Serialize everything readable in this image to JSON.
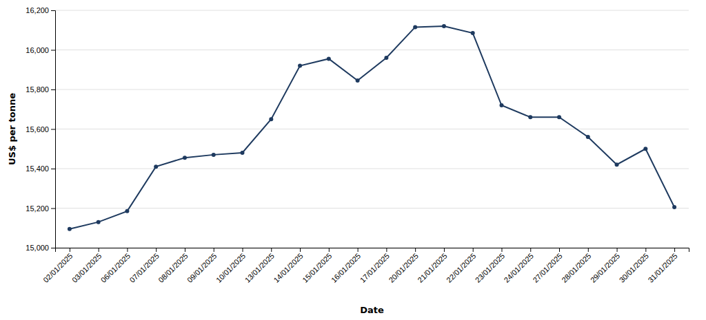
{
  "chart_data": {
    "type": "line",
    "categories": [
      "02/01/2025",
      "03/01/2025",
      "06/01/2025",
      "07/01/2025",
      "08/01/2025",
      "09/01/2025",
      "10/01/2025",
      "13/01/2025",
      "14/01/2025",
      "15/01/2025",
      "16/01/2025",
      "17/01/2025",
      "20/01/2025",
      "21/01/2025",
      "22/01/2025",
      "23/01/2025",
      "24/01/2025",
      "27/01/2025",
      "28/01/2025",
      "29/01/2025",
      "30/01/2025",
      "31/01/2025"
    ],
    "values": [
      15095,
      15130,
      15185,
      15410,
      15455,
      15470,
      15480,
      15650,
      15920,
      15955,
      15845,
      15960,
      16115,
      16120,
      16085,
      15720,
      15660,
      15660,
      15560,
      15420,
      15500,
      15205
    ],
    "color": "#1e3a5f",
    "marker": "circle",
    "xlabel": "Date",
    "ylabel": "US$ per tonne",
    "ylim": [
      15000,
      16200
    ],
    "yticks": [
      {
        "value": 15000,
        "label": "15,000"
      },
      {
        "value": 15200,
        "label": "15,200"
      },
      {
        "value": 15400,
        "label": "15,400"
      },
      {
        "value": 15600,
        "label": "15,600"
      },
      {
        "value": 15800,
        "label": "15,800"
      },
      {
        "value": 16000,
        "label": "16,000"
      },
      {
        "value": 16200,
        "label": "16,200"
      }
    ],
    "grid": true
  }
}
